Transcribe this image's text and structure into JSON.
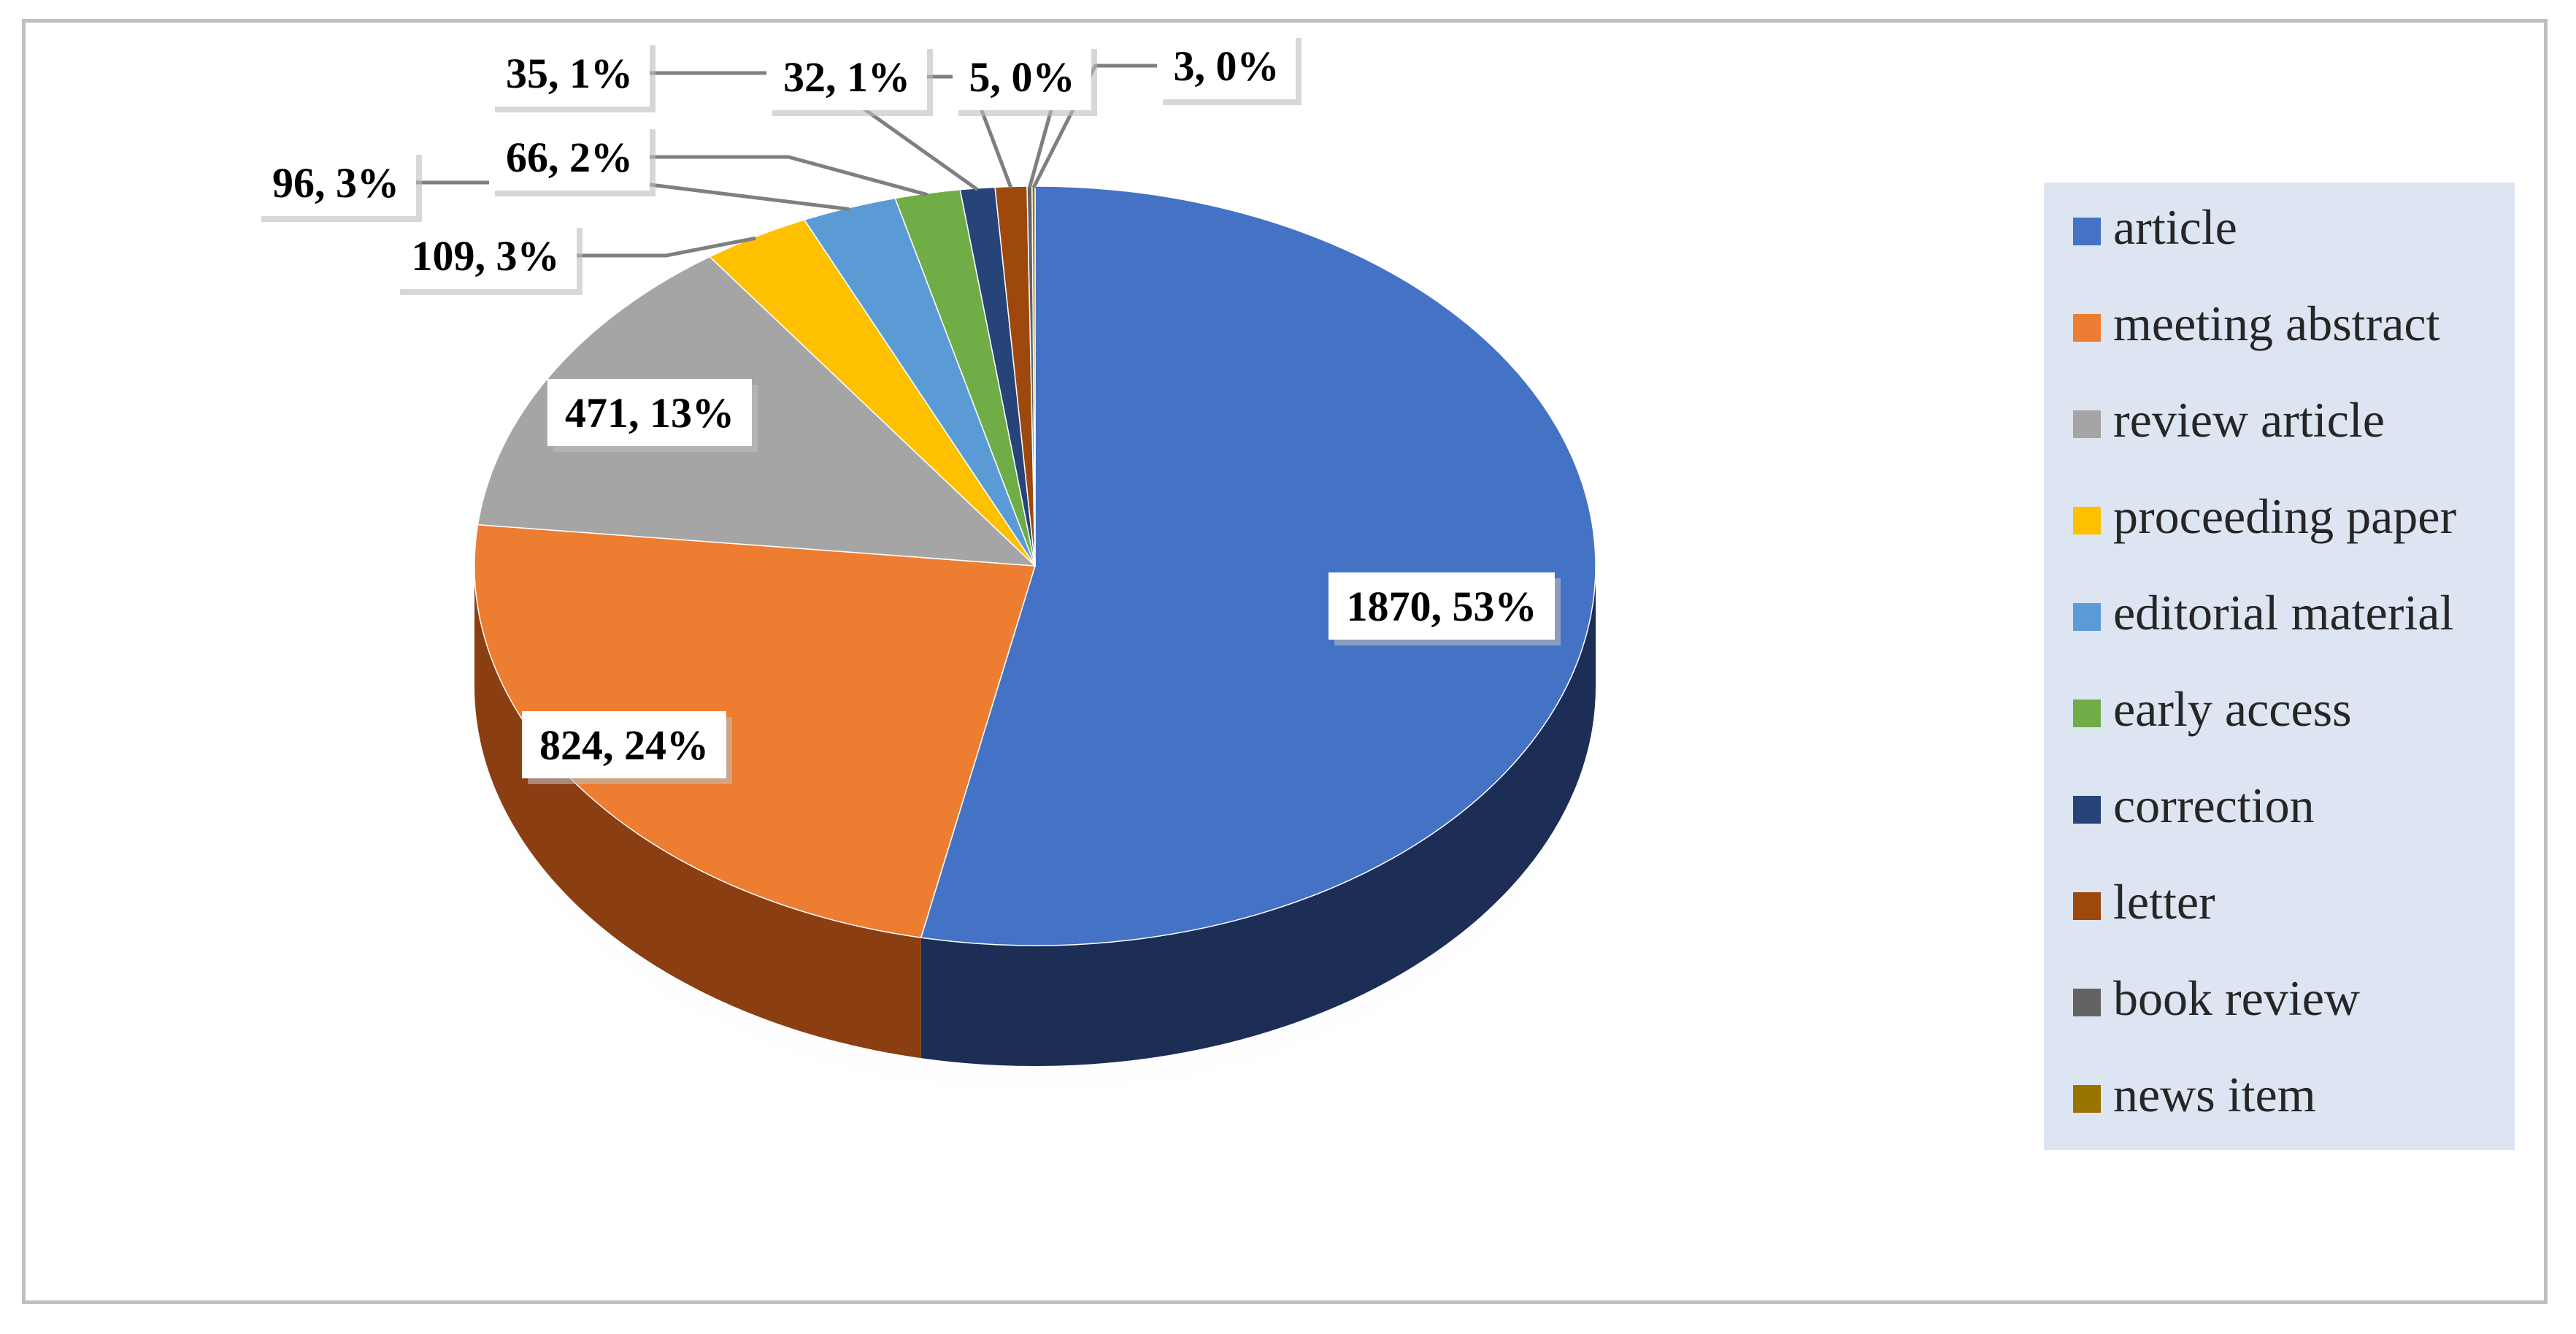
{
  "chart_data": {
    "type": "pie",
    "title": "",
    "legend_position": "right",
    "slices": [
      {
        "name": "article",
        "value": 1870,
        "label": "1870, 53%",
        "color": "#4472c4",
        "side": "#1c2e55"
      },
      {
        "name": "meeting abstract",
        "value": 824,
        "label": "824, 24%",
        "color": "#ed7d31",
        "side": "#8a3e12"
      },
      {
        "name": "review article",
        "value": 471,
        "label": "471, 13%",
        "color": "#a5a5a5",
        "side": "#5c5c5c"
      },
      {
        "name": "proceeding paper",
        "value": 109,
        "label": "109, 3%",
        "color": "#ffc000",
        "side": "#8f6b00"
      },
      {
        "name": "editorial material",
        "value": 96,
        "label": "96, 3%",
        "color": "#5b9bd5",
        "side": "#2d5a85"
      },
      {
        "name": "early access",
        "value": 66,
        "label": "66, 2%",
        "color": "#70ad47",
        "side": "#3c6524"
      },
      {
        "name": "correction",
        "value": 35,
        "label": "35, 1%",
        "color": "#264478",
        "side": "#142542"
      },
      {
        "name": "letter",
        "value": 32,
        "label": "32, 1%",
        "color": "#9e480e",
        "side": "#5a2708"
      },
      {
        "name": "book review",
        "value": 5,
        "label": "5, 0%",
        "color": "#636363",
        "side": "#353535"
      },
      {
        "name": "news item",
        "value": 3,
        "label": "3, 0%",
        "color": "#997300",
        "side": "#574100"
      }
    ]
  }
}
